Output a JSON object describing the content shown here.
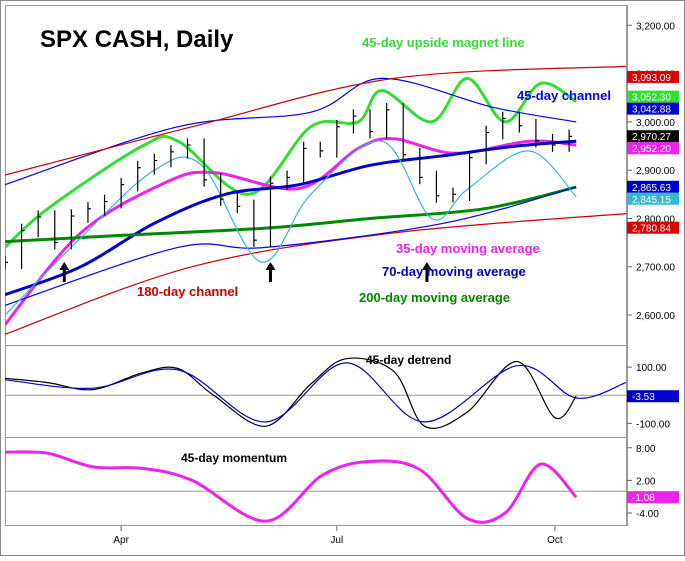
{
  "chart_data": [
    {
      "type": "line",
      "title": "SPX CASH, Daily",
      "x_axis": {
        "type": "date",
        "range": [
          "2019-02-11",
          "2019-10-31"
        ],
        "ticks": [
          "Apr",
          "Jul",
          "Oct"
        ]
      },
      "y_axis": {
        "range": [
          2540,
          3240
        ],
        "side": "right",
        "ticks": [
          2600,
          2700,
          2800,
          2900,
          3000,
          3100,
          3200
        ],
        "tick_labels": [
          "2,600.00",
          "2,700.00",
          "2,800.00",
          "2,900.00",
          "3,000.00",
          "3,100.00",
          "3,200.00"
        ]
      },
      "grid": false,
      "price": {
        "name": "SPX",
        "style": "ohlc-bars",
        "color": "#000000",
        "points": [
          [
            "2019-02-11",
            2709
          ],
          [
            "2019-02-18",
            2775
          ],
          [
            "2019-02-25",
            2803
          ],
          [
            "2019-03-04",
            2750
          ],
          [
            "2019-03-11",
            2805
          ],
          [
            "2019-03-18",
            2820
          ],
          [
            "2019-03-25",
            2835
          ],
          [
            "2019-04-01",
            2870
          ],
          [
            "2019-04-08",
            2905
          ],
          [
            "2019-04-15",
            2920
          ],
          [
            "2019-04-22",
            2938
          ],
          [
            "2019-04-29",
            2952
          ],
          [
            "2019-05-06",
            2880
          ],
          [
            "2019-05-13",
            2840
          ],
          [
            "2019-05-20",
            2825
          ],
          [
            "2019-05-27",
            2755
          ],
          [
            "2019-06-03",
            2873
          ],
          [
            "2019-06-10",
            2885
          ],
          [
            "2019-06-17",
            2945
          ],
          [
            "2019-06-24",
            2940
          ],
          [
            "2019-07-01",
            2990
          ],
          [
            "2019-07-08",
            3012
          ],
          [
            "2019-07-15",
            2980
          ],
          [
            "2019-07-22",
            3025
          ],
          [
            "2019-07-29",
            2932
          ],
          [
            "2019-08-05",
            2885
          ],
          [
            "2019-08-12",
            2847
          ],
          [
            "2019-08-19",
            2850
          ],
          [
            "2019-08-26",
            2926
          ],
          [
            "2019-09-02",
            2978
          ],
          [
            "2019-09-09",
            3007
          ],
          [
            "2019-09-16",
            2992
          ],
          [
            "2019-09-23",
            2961
          ],
          [
            "2019-09-30",
            2952
          ],
          [
            "2019-10-07",
            2970
          ]
        ]
      },
      "series": [
        {
          "name": "45-day upside magnet line",
          "color": "#33dd33",
          "points": [
            [
              "2019-02-11",
              2740
            ],
            [
              "2019-03-01",
              2820
            ],
            [
              "2019-04-10",
              2950
            ],
            [
              "2019-04-25",
              2960
            ],
            [
              "2019-05-25",
              2850
            ],
            [
              "2019-06-20",
              2990
            ],
            [
              "2019-07-10",
              3000
            ],
            [
              "2019-07-20",
              3065
            ],
            [
              "2019-08-10",
              3000
            ],
            [
              "2019-08-25",
              3090
            ],
            [
              "2019-09-10",
              3000
            ],
            [
              "2019-09-25",
              3080
            ],
            [
              "2019-10-10",
              3042
            ]
          ]
        },
        {
          "name": "35-day moving average",
          "color": "#ee22ee",
          "points": [
            [
              "2019-02-11",
              2580
            ],
            [
              "2019-03-15",
              2770
            ],
            [
              "2019-04-20",
              2875
            ],
            [
              "2019-05-10",
              2895
            ],
            [
              "2019-06-15",
              2862
            ],
            [
              "2019-07-10",
              2945
            ],
            [
              "2019-07-25",
              2965
            ],
            [
              "2019-08-20",
              2935
            ],
            [
              "2019-09-20",
              2960
            ],
            [
              "2019-10-10",
              2952
            ]
          ]
        },
        {
          "name": "70-day moving average",
          "color": "#0000cc",
          "points": [
            [
              "2019-02-11",
              2642
            ],
            [
              "2019-03-15",
              2700
            ],
            [
              "2019-04-15",
              2790
            ],
            [
              "2019-05-15",
              2850
            ],
            [
              "2019-06-15",
              2870
            ],
            [
              "2019-07-15",
              2910
            ],
            [
              "2019-08-15",
              2930
            ],
            [
              "2019-09-15",
              2950
            ],
            [
              "2019-10-10",
              2960
            ]
          ]
        },
        {
          "name": "200-day moving average",
          "color": "#008800",
          "points": [
            [
              "2019-02-11",
              2752
            ],
            [
              "2019-04-01",
              2765
            ],
            [
              "2019-06-01",
              2780
            ],
            [
              "2019-07-15",
              2800
            ],
            [
              "2019-09-01",
              2820
            ],
            [
              "2019-10-10",
              2865
            ]
          ]
        },
        {
          "name": "45-day channel",
          "color": "#0000ff",
          "points": [
            [
              "2019-02-11",
              2870
            ],
            [
              "2019-04-25",
              2990
            ],
            [
              "2019-06-20",
              3020
            ],
            [
              "2019-07-20",
              3090
            ],
            [
              "2019-09-05",
              3030
            ],
            [
              "2019-10-10",
              3000
            ]
          ]
        },
        {
          "name": "180-day channel",
          "color": "#cc0000",
          "points": [
            [
              "2019-02-11",
              2890
            ],
            [
              "2019-05-01",
              2990
            ],
            [
              "2019-07-25",
              3090
            ],
            [
              "2019-10-31",
              3115
            ]
          ]
        },
        {
          "name": "",
          "color": "#cc0000",
          "points": [
            [
              "2019-02-11",
              2560
            ],
            [
              "2019-05-01",
              2700
            ],
            [
              "2019-07-25",
              2770
            ],
            [
              "2019-10-31",
              2810
            ]
          ]
        },
        {
          "name": "",
          "color": "#0000ff",
          "points": [
            [
              "2019-02-11",
              2620
            ],
            [
              "2019-04-25",
              2740
            ],
            [
              "2019-06-01",
              2740
            ],
            [
              "2019-08-15",
              2790
            ],
            [
              "2019-10-10",
              2865
            ]
          ]
        },
        {
          "name": "",
          "color": "#33bbcc",
          "points": [
            [
              "2019-02-11",
              2600
            ],
            [
              "2019-03-15",
              2760
            ],
            [
              "2019-04-15",
              2900
            ],
            [
              "2019-05-05",
              2910
            ],
            [
              "2019-05-30",
              2710
            ],
            [
              "2019-06-20",
              2850
            ],
            [
              "2019-07-20",
              2960
            ],
            [
              "2019-08-10",
              2800
            ],
            [
              "2019-08-25",
              2860
            ],
            [
              "2019-09-20",
              2940
            ],
            [
              "2019-10-10",
              2845
            ]
          ]
        }
      ],
      "annotations": [
        {
          "text": "45-day upside magnet line",
          "color": "#33dd33"
        },
        {
          "text": "45-day channel",
          "color": "#0000ff"
        },
        {
          "text": "35-day moving average",
          "color": "#ee22ee"
        },
        {
          "text": "70-day moving average",
          "color": "#0000cc"
        },
        {
          "text": "200-day moving average",
          "color": "#008800"
        },
        {
          "text": "180-day channel",
          "color": "#cc0000"
        }
      ],
      "arrows": [
        "2019-03-08",
        "2019-06-03",
        "2019-08-08"
      ],
      "price_tags": [
        {
          "label": "3,093.09",
          "bg": "#dd0000",
          "fg": "#ffffff",
          "value": 3093.09
        },
        {
          "label": "3,052.30",
          "bg": "#33dd33",
          "fg": "#ffffff",
          "value": 3052.3
        },
        {
          "label": "3,042.88",
          "bg": "#0000cc",
          "fg": "#ffffff",
          "value": 3042.88
        },
        {
          "label": "2,970.27",
          "bg": "#000000",
          "fg": "#ffffff",
          "value": 2970.27
        },
        {
          "label": "2,952.20",
          "bg": "#ee22ee",
          "fg": "#ffffff",
          "value": 2952.2
        },
        {
          "label": "2,865.63",
          "bg": "#0000cc",
          "fg": "#ffffff",
          "value": 2865.63
        },
        {
          "label": "2,845.15",
          "bg": "#33bbcc",
          "fg": "#ffffff",
          "value": 2845.15
        },
        {
          "label": "2,780.84",
          "bg": "#dd0000",
          "fg": "#ffffff",
          "value": 2780.84
        }
      ]
    },
    {
      "type": "line",
      "title": "45-day detrend",
      "y_axis": {
        "range": [
          -145,
          175
        ],
        "ticks": [
          100,
          -100
        ],
        "tick_labels": [
          "100.00",
          "-100.00"
        ]
      },
      "zero_line": 0,
      "series": [
        {
          "name": "45-day detrend",
          "color": "#000000",
          "points": [
            [
              "2019-02-11",
              60
            ],
            [
              "2019-03-01",
              45
            ],
            [
              "2019-03-20",
              20
            ],
            [
              "2019-04-10",
              80
            ],
            [
              "2019-04-25",
              95
            ],
            [
              "2019-05-10",
              0
            ],
            [
              "2019-06-01",
              -110
            ],
            [
              "2019-06-20",
              40
            ],
            [
              "2019-07-05",
              130
            ],
            [
              "2019-07-25",
              85
            ],
            [
              "2019-08-07",
              -110
            ],
            [
              "2019-08-25",
              -60
            ],
            [
              "2019-09-15",
              120
            ],
            [
              "2019-10-01",
              -80
            ],
            [
              "2019-10-10",
              -3.53
            ]
          ]
        },
        {
          "name": "",
          "color": "#0000cc",
          "points": [
            [
              "2019-02-11",
              55
            ],
            [
              "2019-03-20",
              25
            ],
            [
              "2019-04-25",
              90
            ],
            [
              "2019-06-01",
              -95
            ],
            [
              "2019-07-05",
              115
            ],
            [
              "2019-08-07",
              -95
            ],
            [
              "2019-09-15",
              105
            ],
            [
              "2019-10-10",
              -10
            ],
            [
              "2019-10-31",
              45
            ]
          ]
        }
      ],
      "price_tags": [
        {
          "label": "-3.53",
          "bg": "#0000cc",
          "fg": "#ffffff",
          "value": -3.53
        }
      ]
    },
    {
      "type": "line",
      "title": "45-day momentum",
      "y_axis": {
        "range": [
          -6.2,
          9.8
        ],
        "ticks": [
          8,
          2,
          -4
        ],
        "tick_labels": [
          "8.00",
          "2.00",
          "-4.00"
        ]
      },
      "zero_line": 0,
      "series": [
        {
          "name": "45-day momentum",
          "color": "#ee22ee",
          "points": [
            [
              "2019-02-11",
              7.2
            ],
            [
              "2019-03-01",
              7.0
            ],
            [
              "2019-03-20",
              4.5
            ],
            [
              "2019-04-10",
              4.2
            ],
            [
              "2019-05-01",
              2.0
            ],
            [
              "2019-06-01",
              -5.5
            ],
            [
              "2019-06-25",
              3.0
            ],
            [
              "2019-07-15",
              5.5
            ],
            [
              "2019-08-05",
              4.0
            ],
            [
              "2019-08-25",
              -5.0
            ],
            [
              "2019-09-10",
              -4.0
            ],
            [
              "2019-09-25",
              5.0
            ],
            [
              "2019-10-10",
              -1.08
            ]
          ]
        }
      ],
      "price_tags": [
        {
          "label": "-1.08",
          "bg": "#ee22ee",
          "fg": "#ffffff",
          "value": -1.08
        }
      ]
    }
  ]
}
